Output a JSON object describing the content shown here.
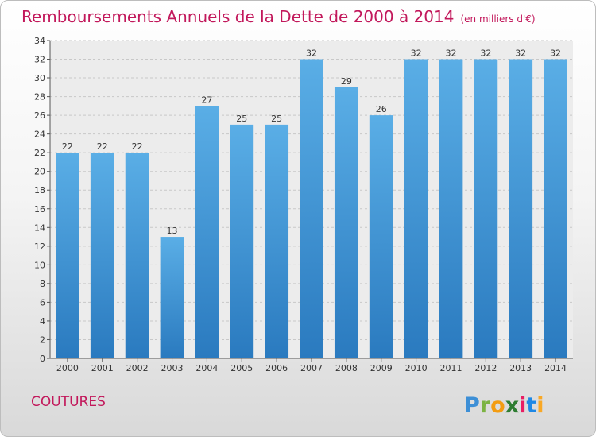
{
  "header": {
    "title": "Remboursements Annuels de la Dette de 2000 à 2014",
    "unit": "(en milliers d'€)"
  },
  "footer": {
    "commune": "COUTURES",
    "logo_text": "Proxiti"
  },
  "colors": {
    "title": "#c2185b",
    "bar_top": "#5aaee6",
    "bar_bottom": "#2a7abf"
  },
  "chart_data": {
    "type": "bar",
    "categories": [
      "2000",
      "2001",
      "2002",
      "2003",
      "2004",
      "2005",
      "2006",
      "2007",
      "2008",
      "2009",
      "2010",
      "2011",
      "2012",
      "2013",
      "2014"
    ],
    "values": [
      22,
      22,
      22,
      13,
      27,
      25,
      25,
      32,
      29,
      26,
      32,
      32,
      32,
      32,
      32
    ],
    "ylim": [
      0,
      34
    ],
    "yticks": [
      0,
      2,
      4,
      6,
      8,
      10,
      12,
      14,
      16,
      18,
      20,
      22,
      24,
      26,
      28,
      30,
      32,
      34
    ],
    "grid": true,
    "data_labels": true
  }
}
